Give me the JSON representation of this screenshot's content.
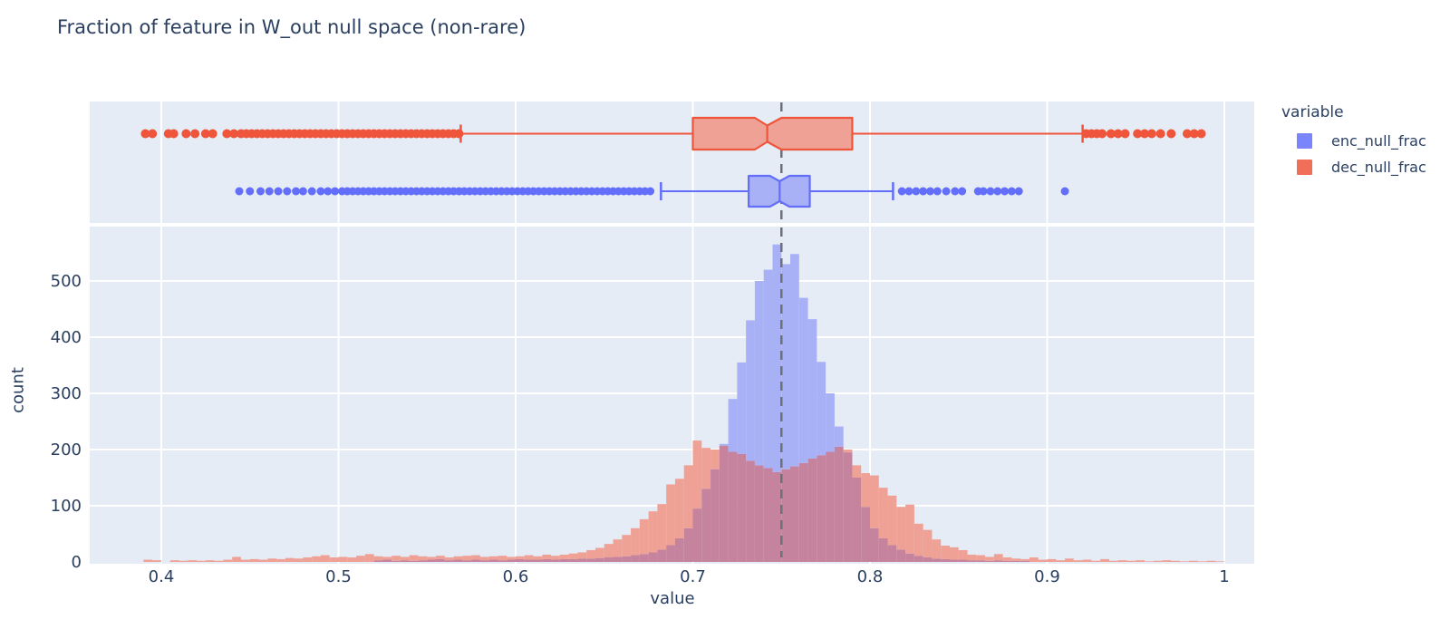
{
  "title": "Fraction of feature in W_out null space (non-rare)",
  "axes": {
    "x_label": "value",
    "y_label": "count"
  },
  "legend": {
    "title": "variable",
    "items": [
      {
        "label": "enc_null_frac",
        "color": "#636EFA"
      },
      {
        "label": "dec_null_frac",
        "color": "#EF553B"
      }
    ]
  },
  "colors": {
    "panel_bg": "#E5ECF6",
    "gridline": "#FFFFFF",
    "text": "#2a3f5f",
    "ref_line": "#6b7177",
    "enc_line": "#636EFA",
    "enc_fill": "#A9B1F6",
    "dec_line": "#EF553B",
    "dec_fill": "#EFA195",
    "overlap_fill": "#C5839D"
  },
  "chart_data": {
    "type": "histogram with marginal box plots",
    "title": "Fraction of feature in W_out null space (non-rare)",
    "xlabel": "value",
    "ylabel": "count",
    "x_tick_values": [
      0.4,
      0.5,
      0.6,
      0.7,
      0.8,
      0.9,
      1.0
    ],
    "x_tick_labels": [
      "0.4",
      "0.5",
      "0.6",
      "0.7",
      "0.8",
      "0.9",
      "1"
    ],
    "y_tick_values": [
      0,
      100,
      200,
      300,
      400,
      500
    ],
    "y_tick_labels": [
      "0",
      "100",
      "200",
      "300",
      "400",
      "500"
    ],
    "x_range": [
      0.359,
      1.017
    ],
    "y_range": [
      0,
      600
    ],
    "grid": true,
    "legend_position": "right",
    "reference_line_x": 0.75,
    "histogram": {
      "bin_start": 0.39,
      "bin_width": 0.005,
      "series": [
        {
          "name": "enc_null_frac",
          "values": [
            0,
            0,
            0,
            0,
            0,
            0,
            0,
            0,
            0,
            0,
            0,
            0,
            0,
            0,
            0,
            0,
            0,
            0,
            0,
            0,
            0,
            0,
            0,
            0,
            0,
            0,
            3,
            4,
            2,
            3,
            2,
            3,
            4,
            5,
            3,
            4,
            3,
            4,
            3,
            4,
            3,
            4,
            5,
            4,
            4,
            5,
            4,
            5,
            5,
            6,
            6,
            7,
            8,
            9,
            10,
            12,
            14,
            17,
            22,
            30,
            42,
            60,
            95,
            130,
            165,
            210,
            290,
            355,
            430,
            500,
            520,
            565,
            530,
            548,
            470,
            432,
            356,
            300,
            241,
            195,
            150,
            98,
            60,
            42,
            30,
            22,
            15,
            11,
            8,
            6,
            5,
            4,
            4,
            3,
            3,
            2,
            3,
            2,
            2,
            2,
            0,
            0,
            0,
            0,
            0,
            0,
            0,
            0,
            0,
            0,
            0,
            0,
            0,
            0,
            0,
            0,
            0,
            0,
            0,
            0,
            0,
            0
          ]
        },
        {
          "name": "dec_null_frac",
          "values": [
            4,
            3,
            0,
            3,
            2,
            3,
            2,
            3,
            2,
            4,
            9,
            4,
            5,
            4,
            6,
            5,
            7,
            6,
            8,
            10,
            12,
            8,
            9,
            8,
            11,
            14,
            10,
            9,
            11,
            9,
            12,
            10,
            9,
            11,
            8,
            10,
            11,
            12,
            9,
            10,
            11,
            9,
            10,
            12,
            10,
            13,
            11,
            13,
            15,
            17,
            21,
            25,
            32,
            40,
            48,
            60,
            76,
            90,
            103,
            138,
            148,
            172,
            216,
            203,
            200,
            207,
            196,
            192,
            180,
            172,
            167,
            160,
            165,
            170,
            176,
            184,
            190,
            196,
            205,
            200,
            172,
            158,
            154,
            132,
            118,
            98,
            102,
            68,
            57,
            40,
            29,
            26,
            21,
            13,
            12,
            9,
            14,
            8,
            6,
            5,
            8,
            4,
            5,
            3,
            6,
            3,
            4,
            2,
            5,
            2,
            3,
            2,
            3,
            1,
            2,
            3,
            2,
            1,
            2,
            1,
            2,
            1
          ]
        }
      ]
    },
    "box_plots": [
      {
        "name": "dec_null_frac",
        "row": "top",
        "notched": true,
        "q1": 0.7,
        "median": 0.742,
        "q3": 0.79,
        "notch_low": 0.735,
        "notch_high": 0.75,
        "whisker_low": 0.569,
        "whisker_high": 0.92,
        "outliers_low": [
          0.391,
          0.395,
          0.404,
          0.407,
          0.414,
          0.419,
          0.425,
          0.429,
          0.437,
          0.441,
          0.445,
          0.448,
          0.451,
          0.454,
          0.457,
          0.46,
          0.463,
          0.466,
          0.469,
          0.472,
          0.475,
          0.478,
          0.481,
          0.484,
          0.487,
          0.49,
          0.493,
          0.496,
          0.499,
          0.502,
          0.505,
          0.508,
          0.511,
          0.514,
          0.517,
          0.52,
          0.523,
          0.526,
          0.529,
          0.532,
          0.535,
          0.538,
          0.541,
          0.544,
          0.547,
          0.55,
          0.553,
          0.556,
          0.559,
          0.562,
          0.565,
          0.568
        ],
        "outliers_high": [
          0.922,
          0.925,
          0.928,
          0.931,
          0.936,
          0.94,
          0.944,
          0.951,
          0.955,
          0.959,
          0.964,
          0.97,
          0.979,
          0.983,
          0.987
        ]
      },
      {
        "name": "enc_null_frac",
        "row": "bottom",
        "notched": true,
        "q1": 0.7315,
        "median": 0.749,
        "q3": 0.766,
        "notch_low": 0.7435,
        "notch_high": 0.7545,
        "whisker_low": 0.682,
        "whisker_high": 0.813,
        "outliers_low": [
          0.444,
          0.45,
          0.456,
          0.461,
          0.466,
          0.471,
          0.476,
          0.48,
          0.485,
          0.49,
          0.494,
          0.498,
          0.502,
          0.505,
          0.508,
          0.511,
          0.514,
          0.517,
          0.52,
          0.523,
          0.526,
          0.529,
          0.532,
          0.535,
          0.538,
          0.541,
          0.544,
          0.547,
          0.55,
          0.553,
          0.556,
          0.559,
          0.562,
          0.565,
          0.568,
          0.571,
          0.574,
          0.577,
          0.58,
          0.583,
          0.586,
          0.589,
          0.592,
          0.595,
          0.598,
          0.601,
          0.604,
          0.607,
          0.61,
          0.613,
          0.616,
          0.619,
          0.622,
          0.625,
          0.628,
          0.631,
          0.634,
          0.637,
          0.64,
          0.643,
          0.646,
          0.649,
          0.652,
          0.655,
          0.658,
          0.661,
          0.664,
          0.667,
          0.67,
          0.673,
          0.676
        ],
        "outliers_high": [
          0.818,
          0.822,
          0.826,
          0.83,
          0.834,
          0.838,
          0.843,
          0.848,
          0.852,
          0.861,
          0.864,
          0.868,
          0.872,
          0.876,
          0.88,
          0.884,
          0.91
        ]
      }
    ]
  }
}
